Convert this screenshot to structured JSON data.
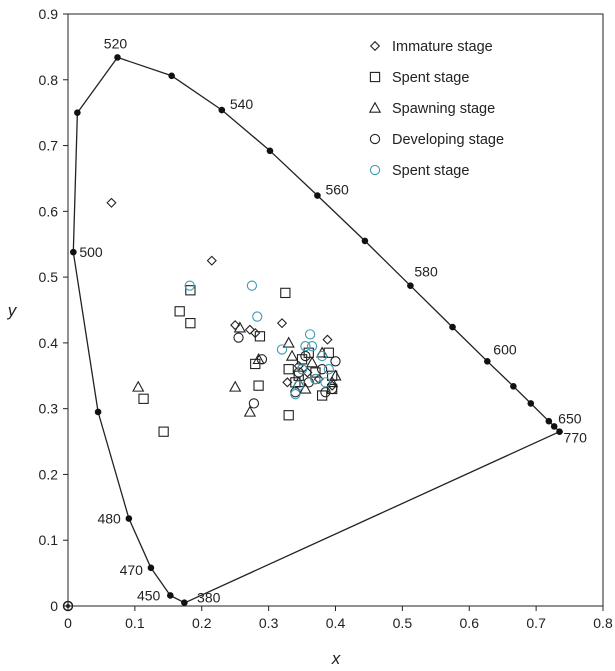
{
  "chart_data": {
    "type": "scatter",
    "title": "",
    "xlabel": "x",
    "ylabel": "y",
    "xlim": [
      0,
      0.8
    ],
    "ylim": [
      0,
      0.9
    ],
    "x_ticks": [
      "0",
      "0.1",
      "0.2",
      "0.3",
      "0.4",
      "0.5",
      "0.6",
      "0.7",
      "0.8"
    ],
    "y_ticks": [
      "0",
      "0.1",
      "0.2",
      "0.3",
      "0.4",
      "0.5",
      "0.6",
      "0.7",
      "0.8",
      "0.9"
    ],
    "grid": false,
    "legend_position": "top-right",
    "locus": {
      "points": [
        [
          0.174,
          0.005
        ],
        [
          0.153,
          0.016
        ],
        [
          0.124,
          0.058
        ],
        [
          0.091,
          0.133
        ],
        [
          0.045,
          0.295
        ],
        [
          0.008,
          0.538
        ],
        [
          0.014,
          0.75
        ],
        [
          0.074,
          0.834
        ],
        [
          0.155,
          0.806
        ],
        [
          0.23,
          0.754
        ],
        [
          0.302,
          0.692
        ],
        [
          0.373,
          0.624
        ],
        [
          0.444,
          0.555
        ],
        [
          0.512,
          0.487
        ],
        [
          0.575,
          0.424
        ],
        [
          0.627,
          0.372
        ],
        [
          0.666,
          0.334
        ],
        [
          0.692,
          0.308
        ],
        [
          0.719,
          0.281
        ],
        [
          0.727,
          0.273
        ],
        [
          0.735,
          0.265
        ]
      ],
      "closing_line": [
        [
          0.735,
          0.265
        ],
        [
          0.175,
          0.005
        ]
      ],
      "wavelength_labels": [
        {
          "text": "520",
          "x": 0.074,
          "y": 0.834
        },
        {
          "text": "540",
          "x": 0.23,
          "y": 0.754
        },
        {
          "text": "560",
          "x": 0.373,
          "y": 0.624
        },
        {
          "text": "580",
          "x": 0.512,
          "y": 0.487
        },
        {
          "text": "600",
          "x": 0.627,
          "y": 0.372
        },
        {
          "text": "650",
          "x": 0.727,
          "y": 0.273
        },
        {
          "text": "770",
          "x": 0.735,
          "y": 0.265
        },
        {
          "text": "500",
          "x": 0.008,
          "y": 0.538
        },
        {
          "text": "480",
          "x": 0.091,
          "y": 0.133
        },
        {
          "text": "470",
          "x": 0.124,
          "y": 0.058
        },
        {
          "text": "450",
          "x": 0.153,
          "y": 0.016
        },
        {
          "text": "380",
          "x": 0.175,
          "y": 0.005
        }
      ],
      "origin_marker": {
        "x": 0.0,
        "y": 0.0
      }
    },
    "series": [
      {
        "name": "Immature stage",
        "marker": "diamond",
        "color": "#222222",
        "points": [
          [
            0.065,
            0.613
          ],
          [
            0.215,
            0.525
          ],
          [
            0.25,
            0.427
          ],
          [
            0.272,
            0.42
          ],
          [
            0.28,
            0.415
          ],
          [
            0.32,
            0.43
          ],
          [
            0.345,
            0.365
          ],
          [
            0.358,
            0.355
          ],
          [
            0.388,
            0.405
          ],
          [
            0.375,
            0.345
          ],
          [
            0.328,
            0.34
          ],
          [
            0.395,
            0.335
          ]
        ]
      },
      {
        "name": "Spent stage",
        "marker": "square",
        "color": "#222222",
        "points": [
          [
            0.183,
            0.48
          ],
          [
            0.167,
            0.448
          ],
          [
            0.183,
            0.43
          ],
          [
            0.113,
            0.315
          ],
          [
            0.143,
            0.265
          ],
          [
            0.325,
            0.476
          ],
          [
            0.28,
            0.368
          ],
          [
            0.287,
            0.41
          ],
          [
            0.285,
            0.335
          ],
          [
            0.33,
            0.29
          ],
          [
            0.33,
            0.36
          ],
          [
            0.345,
            0.35
          ],
          [
            0.36,
            0.385
          ],
          [
            0.38,
            0.32
          ],
          [
            0.395,
            0.33
          ],
          [
            0.35,
            0.375
          ],
          [
            0.34,
            0.34
          ],
          [
            0.39,
            0.385
          ],
          [
            0.37,
            0.355
          ],
          [
            0.395,
            0.35
          ]
        ]
      },
      {
        "name": "Spawning stage",
        "marker": "triangle",
        "color": "#222222",
        "points": [
          [
            0.105,
            0.333
          ],
          [
            0.25,
            0.333
          ],
          [
            0.257,
            0.423
          ],
          [
            0.272,
            0.295
          ],
          [
            0.285,
            0.375
          ],
          [
            0.33,
            0.4
          ],
          [
            0.345,
            0.34
          ],
          [
            0.355,
            0.33
          ],
          [
            0.365,
            0.37
          ],
          [
            0.38,
            0.385
          ],
          [
            0.395,
            0.34
          ],
          [
            0.4,
            0.35
          ],
          [
            0.335,
            0.38
          ]
        ]
      },
      {
        "name": "Developing stage",
        "marker": "circle",
        "color": "#222222",
        "points": [
          [
            0.255,
            0.408
          ],
          [
            0.278,
            0.308
          ],
          [
            0.29,
            0.375
          ],
          [
            0.34,
            0.325
          ],
          [
            0.355,
            0.38
          ],
          [
            0.37,
            0.345
          ],
          [
            0.385,
            0.325
          ],
          [
            0.395,
            0.33
          ],
          [
            0.38,
            0.36
          ],
          [
            0.4,
            0.372
          ],
          [
            0.36,
            0.34
          ],
          [
            0.345,
            0.355
          ]
        ]
      },
      {
        "name": "Spent stage",
        "marker": "circle",
        "color": "#3e9bb3",
        "points": [
          [
            0.182,
            0.487
          ],
          [
            0.275,
            0.487
          ],
          [
            0.283,
            0.44
          ],
          [
            0.32,
            0.39
          ],
          [
            0.34,
            0.322
          ],
          [
            0.35,
            0.36
          ],
          [
            0.355,
            0.395
          ],
          [
            0.362,
            0.413
          ],
          [
            0.37,
            0.345
          ],
          [
            0.38,
            0.38
          ],
          [
            0.385,
            0.34
          ],
          [
            0.39,
            0.36
          ],
          [
            0.345,
            0.335
          ],
          [
            0.365,
            0.395
          ]
        ]
      }
    ]
  }
}
